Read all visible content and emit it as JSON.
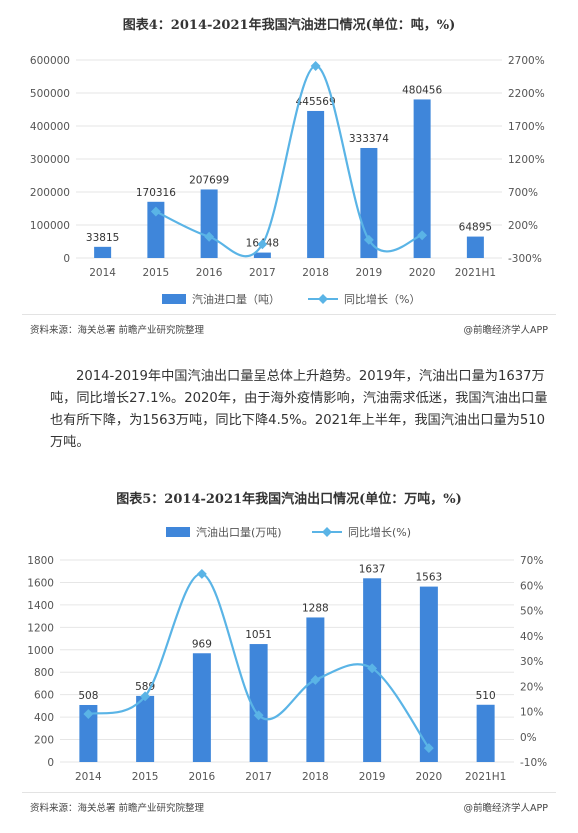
{
  "colors": {
    "bar": "#3F86DA",
    "line": "#5AB4E6",
    "grid": "#e6e6e6"
  },
  "chart1": {
    "title": "图表4：2014-2021年我国汽油进口情况(单位：吨，%)",
    "source": "资料来源：海关总署 前瞻产业研究院整理",
    "brand": "@前瞻经济学人APP",
    "legend_bar": "汽油进口量（吨）",
    "legend_line": "同比增长（%）"
  },
  "chart2": {
    "title": "图表5：2014-2021年我国汽油出口情况(单位：万吨，%)",
    "source": "资料来源：海关总署 前瞻产业研究院整理",
    "brand": "@前瞻经济学人APP",
    "legend_bar": "汽油出口量(万吨)",
    "legend_line": "同比增长(%)"
  },
  "paragraph": "2014-2019年中国汽油出口量呈总体上升趋势。2019年，汽油出口量为1637万吨，同比增长27.1%。2020年，由于海外疫情影响，汽油需求低迷，我国汽油出口量也有所下降，为1563万吨，同比下降4.5%。2021年上半年，我国汽油出口量为510万吨。",
  "chart_data": [
    {
      "type": "bar",
      "categories": [
        "2014",
        "2015",
        "2016",
        "2017",
        "2018",
        "2019",
        "2020",
        "2021H1"
      ],
      "series": [
        {
          "name": "汽油进口量（吨）",
          "type": "bar",
          "axis": "left",
          "values": [
            33815,
            170316,
            207699,
            16448,
            445569,
            333374,
            480456,
            64895
          ],
          "labels": [
            "33815",
            "170316",
            "207699",
            "16448",
            "445569",
            "333374",
            "480456",
            "64895"
          ]
        },
        {
          "name": "同比增长（%）",
          "type": "line",
          "axis": "right",
          "smooth": true,
          "values": [
            null,
            404,
            22,
            -92,
            2609,
            -25,
            44,
            null
          ]
        }
      ],
      "yleft_lim": [
        0,
        600000
      ],
      "yleft_ticks": [
        "0",
        "100000",
        "200000",
        "300000",
        "400000",
        "500000",
        "600000"
      ],
      "yright_lim": [
        -300,
        2700
      ],
      "yright_ticks": [
        "-300%",
        "200%",
        "700%",
        "1200%",
        "1700%",
        "2200%",
        "2700%"
      ],
      "legend": "bottom",
      "grid": true
    },
    {
      "type": "bar",
      "categories": [
        "2014",
        "2015",
        "2016",
        "2017",
        "2018",
        "2019",
        "2020",
        "2021H1"
      ],
      "series": [
        {
          "name": "汽油出口量(万吨)",
          "type": "bar",
          "axis": "left",
          "values": [
            508,
            589,
            969,
            1051,
            1288,
            1637,
            1563,
            510
          ],
          "labels": [
            "508",
            "589",
            "969",
            "1051",
            "1288",
            "1637",
            "1563",
            "510"
          ]
        },
        {
          "name": "同比增长(%)",
          "type": "line",
          "axis": "right",
          "smooth": true,
          "values": [
            9,
            16,
            64.5,
            8.5,
            22.5,
            27.1,
            -4.5,
            null
          ]
        }
      ],
      "yleft_lim": [
        0,
        1800
      ],
      "yleft_ticks": [
        "0",
        "200",
        "400",
        "600",
        "800",
        "1000",
        "1200",
        "1400",
        "1600",
        "1800"
      ],
      "yright_lim": [
        -10,
        70
      ],
      "yright_ticks": [
        "-10%",
        "0%",
        "10%",
        "20%",
        "30%",
        "40%",
        "50%",
        "60%",
        "70%"
      ],
      "legend": "top",
      "grid": true
    }
  ]
}
